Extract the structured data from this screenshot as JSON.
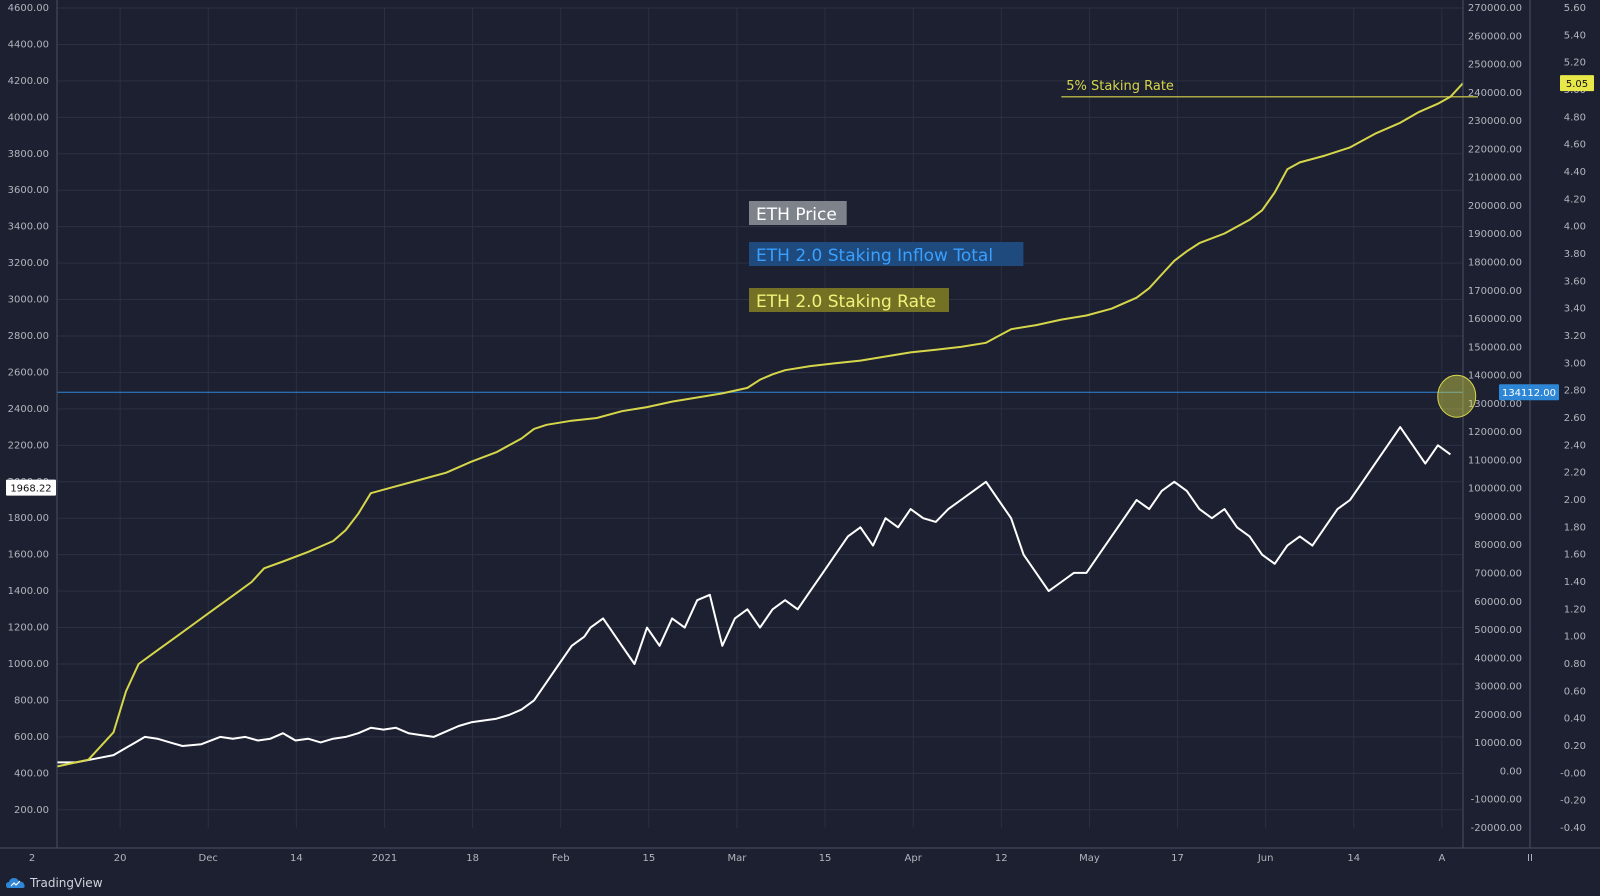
{
  "colors": {
    "background": "#1c2030",
    "grid": "#2b3142",
    "price": "#ffffff",
    "inflow": "#2e86d6",
    "rate": "#d6d64a",
    "axis_text": "#b2b5be"
  },
  "brand": {
    "name": "TradingView",
    "icon": "tradingview-cloud-icon"
  },
  "chart_data": {
    "type": "line",
    "legend": [
      {
        "label": "ETH Price",
        "key": "price"
      },
      {
        "label": "ETH 2.0 Staking Inflow Total",
        "key": "inflow"
      },
      {
        "label": "ETH 2.0 Staking Rate",
        "key": "rate"
      }
    ],
    "annotations": [
      {
        "text": "5% Staking Rate",
        "axis": "rate",
        "value": 4.95
      }
    ],
    "x_ticks": [
      "2",
      "20",
      "Dec",
      "14",
      "2021",
      "18",
      "Feb",
      "15",
      "Mar",
      "15",
      "Apr",
      "12",
      "May",
      "17",
      "Jun",
      "14",
      "A",
      "II"
    ],
    "left_axis": {
      "ticks": [
        "4600.00",
        "4400.00",
        "4200.00",
        "4000.00",
        "3800.00",
        "3600.00",
        "3400.00",
        "3200.00",
        "3000.00",
        "2800.00",
        "2600.00",
        "2400.00",
        "2200.00",
        "2000.00",
        "1800.00",
        "1600.00",
        "1400.00",
        "1200.00",
        "1000.00",
        "800.00",
        "600.00",
        "400.00",
        "200.00"
      ],
      "range": [
        100,
        4600
      ],
      "current_label": "1968.22"
    },
    "inflow_axis": {
      "ticks": [
        "270000.00",
        "260000.00",
        "250000.00",
        "240000.00",
        "230000.00",
        "220000.00",
        "210000.00",
        "200000.00",
        "190000.00",
        "180000.00",
        "170000.00",
        "160000.00",
        "150000.00",
        "140000.00",
        "130000.00",
        "120000.00",
        "110000.00",
        "100000.00",
        "90000.00",
        "80000.00",
        "70000.00",
        "60000.00",
        "50000.00",
        "40000.00",
        "30000.00",
        "20000.00",
        "10000.00",
        "0.00",
        "-10000.00",
        "-20000.00"
      ],
      "range": [
        -20000,
        270000
      ],
      "current_label": "134112.00"
    },
    "rate_axis": {
      "ticks": [
        "5.60",
        "5.40",
        "5.20",
        "5.00",
        "4.80",
        "4.60",
        "4.40",
        "4.20",
        "4.00",
        "3.80",
        "3.60",
        "3.40",
        "3.20",
        "3.00",
        "2.80",
        "2.60",
        "2.40",
        "2.20",
        "2.00",
        "1.80",
        "1.60",
        "1.40",
        "1.20",
        "1.00",
        "0.80",
        "0.60",
        "0.40",
        "0.20",
        "-0.00",
        "-0.20",
        "-0.40"
      ],
      "range": [
        -0.4,
        5.6
      ],
      "current_label": "5.05"
    },
    "x_range": [
      0,
      224
    ],
    "series": [
      {
        "key": "price",
        "axis": "left",
        "points": [
          [
            0,
            460
          ],
          [
            3,
            460
          ],
          [
            6,
            480
          ],
          [
            9,
            500
          ],
          [
            12,
            560
          ],
          [
            14,
            600
          ],
          [
            16,
            590
          ],
          [
            18,
            570
          ],
          [
            20,
            550
          ],
          [
            23,
            560
          ],
          [
            26,
            600
          ],
          [
            28,
            590
          ],
          [
            30,
            600
          ],
          [
            32,
            580
          ],
          [
            34,
            590
          ],
          [
            36,
            620
          ],
          [
            38,
            580
          ],
          [
            40,
            590
          ],
          [
            42,
            570
          ],
          [
            44,
            590
          ],
          [
            46,
            600
          ],
          [
            48,
            620
          ],
          [
            50,
            650
          ],
          [
            52,
            640
          ],
          [
            54,
            650
          ],
          [
            56,
            620
          ],
          [
            58,
            610
          ],
          [
            60,
            600
          ],
          [
            62,
            630
          ],
          [
            64,
            660
          ],
          [
            66,
            680
          ],
          [
            68,
            690
          ],
          [
            70,
            700
          ],
          [
            72,
            720
          ],
          [
            74,
            750
          ],
          [
            76,
            800
          ],
          [
            78,
            900
          ],
          [
            80,
            1000
          ],
          [
            82,
            1100
          ],
          [
            84,
            1150
          ],
          [
            85,
            1200
          ],
          [
            87,
            1250
          ],
          [
            88,
            1200
          ],
          [
            90,
            1100
          ],
          [
            92,
            1000
          ],
          [
            94,
            1200
          ],
          [
            96,
            1100
          ],
          [
            98,
            1250
          ],
          [
            100,
            1200
          ],
          [
            102,
            1350
          ],
          [
            104,
            1380
          ],
          [
            106,
            1100
          ],
          [
            108,
            1250
          ],
          [
            110,
            1300
          ],
          [
            112,
            1200
          ],
          [
            114,
            1300
          ],
          [
            116,
            1350
          ],
          [
            118,
            1300
          ],
          [
            120,
            1400
          ],
          [
            122,
            1500
          ],
          [
            124,
            1600
          ],
          [
            126,
            1700
          ],
          [
            128,
            1750
          ],
          [
            130,
            1650
          ],
          [
            132,
            1800
          ],
          [
            134,
            1750
          ],
          [
            136,
            1850
          ],
          [
            138,
            1800
          ],
          [
            140,
            1780
          ],
          [
            142,
            1850
          ],
          [
            144,
            1900
          ],
          [
            146,
            1950
          ],
          [
            148,
            2000
          ],
          [
            150,
            1900
          ],
          [
            152,
            1800
          ],
          [
            154,
            1600
          ],
          [
            156,
            1500
          ],
          [
            158,
            1400
          ],
          [
            160,
            1450
          ],
          [
            162,
            1500
          ],
          [
            164,
            1500
          ],
          [
            166,
            1600
          ],
          [
            168,
            1700
          ],
          [
            170,
            1800
          ],
          [
            172,
            1900
          ],
          [
            174,
            1850
          ],
          [
            176,
            1950
          ],
          [
            178,
            2000
          ],
          [
            180,
            1950
          ],
          [
            182,
            1850
          ],
          [
            184,
            1800
          ],
          [
            186,
            1850
          ],
          [
            188,
            1750
          ],
          [
            190,
            1700
          ],
          [
            192,
            1600
          ],
          [
            194,
            1550
          ],
          [
            196,
            1650
          ],
          [
            198,
            1700
          ],
          [
            200,
            1650
          ],
          [
            202,
            1750
          ],
          [
            204,
            1850
          ],
          [
            206,
            1900
          ],
          [
            208,
            2000
          ],
          [
            210,
            2100
          ],
          [
            212,
            2200
          ],
          [
            214,
            2300
          ],
          [
            216,
            2200
          ],
          [
            218,
            2100
          ],
          [
            220,
            2200
          ],
          [
            222,
            2150
          ]
        ]
      },
      {
        "key": "rate",
        "axis": "rate",
        "points": [
          [
            0,
            0.05
          ],
          [
            5,
            0.1
          ],
          [
            9,
            0.3
          ],
          [
            11,
            0.6
          ],
          [
            13,
            0.8
          ],
          [
            16,
            0.9
          ],
          [
            19,
            1.0
          ],
          [
            22,
            1.1
          ],
          [
            25,
            1.2
          ],
          [
            28,
            1.3
          ],
          [
            31,
            1.4
          ],
          [
            33,
            1.5
          ],
          [
            36,
            1.55
          ],
          [
            40,
            1.62
          ],
          [
            44,
            1.7
          ],
          [
            46,
            1.78
          ],
          [
            48,
            1.9
          ],
          [
            50,
            2.05
          ],
          [
            54,
            2.1
          ],
          [
            58,
            2.15
          ],
          [
            62,
            2.2
          ],
          [
            66,
            2.28
          ],
          [
            70,
            2.35
          ],
          [
            74,
            2.45
          ],
          [
            76,
            2.52
          ],
          [
            78,
            2.55
          ],
          [
            82,
            2.58
          ],
          [
            86,
            2.6
          ],
          [
            90,
            2.65
          ],
          [
            94,
            2.68
          ],
          [
            98,
            2.72
          ],
          [
            102,
            2.75
          ],
          [
            106,
            2.78
          ],
          [
            110,
            2.82
          ],
          [
            112,
            2.88
          ],
          [
            114,
            2.92
          ],
          [
            116,
            2.95
          ],
          [
            120,
            2.98
          ],
          [
            124,
            3.0
          ],
          [
            128,
            3.02
          ],
          [
            132,
            3.05
          ],
          [
            136,
            3.08
          ],
          [
            140,
            3.1
          ],
          [
            144,
            3.12
          ],
          [
            148,
            3.15
          ],
          [
            150,
            3.2
          ],
          [
            152,
            3.25
          ],
          [
            156,
            3.28
          ],
          [
            160,
            3.32
          ],
          [
            164,
            3.35
          ],
          [
            168,
            3.4
          ],
          [
            172,
            3.48
          ],
          [
            174,
            3.55
          ],
          [
            176,
            3.65
          ],
          [
            178,
            3.75
          ],
          [
            180,
            3.82
          ],
          [
            182,
            3.88
          ],
          [
            186,
            3.95
          ],
          [
            190,
            4.05
          ],
          [
            192,
            4.12
          ],
          [
            194,
            4.25
          ],
          [
            196,
            4.42
          ],
          [
            198,
            4.47
          ],
          [
            202,
            4.52
          ],
          [
            206,
            4.58
          ],
          [
            210,
            4.68
          ],
          [
            214,
            4.76
          ],
          [
            217,
            4.84
          ],
          [
            220,
            4.9
          ],
          [
            222,
            4.95
          ],
          [
            224,
            5.05
          ]
        ]
      }
    ]
  }
}
